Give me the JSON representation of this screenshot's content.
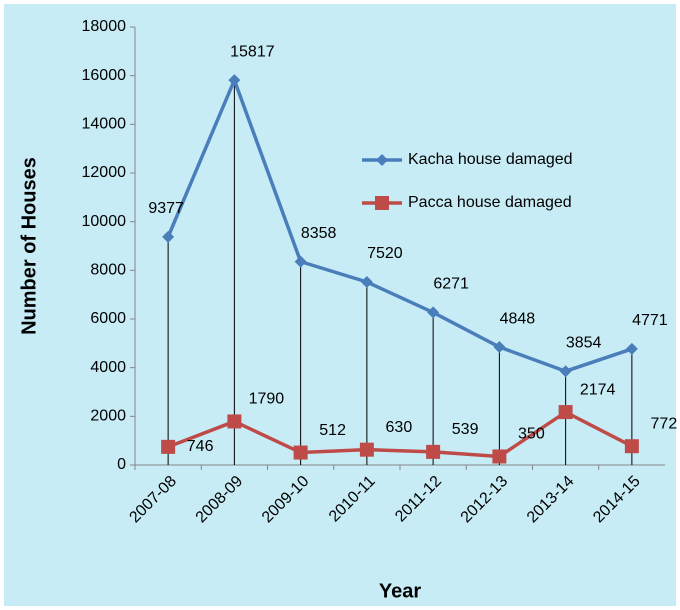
{
  "chart_data": {
    "type": "line",
    "x_label": "Year",
    "y_label": "Number of Houses",
    "categories": [
      "2007-08",
      "2008-09",
      "2009-10",
      "2010-11",
      "2011-12",
      "2012-13",
      "2013-14",
      "2014-15"
    ],
    "series": [
      {
        "name": "Kacha house damaged",
        "color": "#4a7ebb",
        "marker": "diamond",
        "values": [
          9377,
          15817,
          8358,
          7520,
          6271,
          4848,
          3854,
          4771
        ]
      },
      {
        "name": "Pacca house damaged",
        "color": "#be4b48",
        "marker": "square",
        "values": [
          746,
          1790,
          512,
          630,
          539,
          350,
          2174,
          772
        ]
      }
    ],
    "ylim": [
      0,
      18000
    ],
    "yticks": [
      0,
      2000,
      4000,
      6000,
      8000,
      10000,
      12000,
      14000,
      16000,
      18000
    ],
    "legend": "upper right",
    "background": "#c8ecf6",
    "drop_lines": true
  }
}
